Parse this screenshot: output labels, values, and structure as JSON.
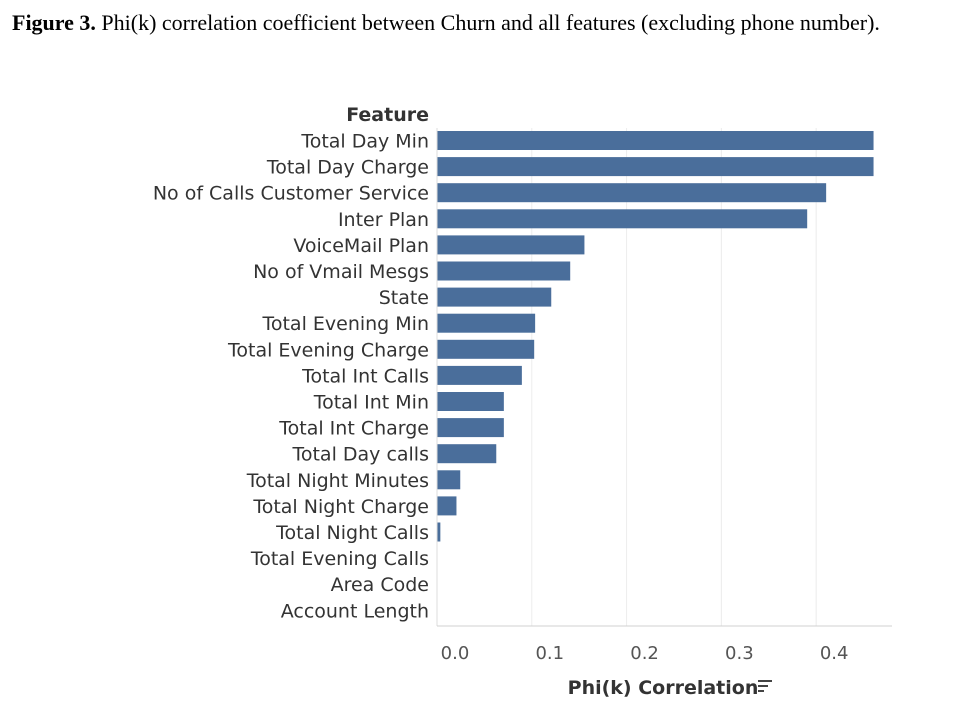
{
  "caption": {
    "lead": "Figure 3.",
    "text": " Phi(k) correlation coefficient between Churn and all features (excluding phone number)."
  },
  "chart_data": {
    "type": "bar",
    "orientation": "horizontal",
    "row_header": "Feature",
    "xlabel": "Phi(k) Correlation",
    "xlim": [
      0,
      0.48
    ],
    "xticks": [
      0.0,
      0.1,
      0.2,
      0.3,
      0.4
    ],
    "xtick_labels": [
      "0.0",
      "0.1",
      "0.2",
      "0.3",
      "0.4"
    ],
    "grid": true,
    "bar_color": "#4A6E9B",
    "sort_icon": "sort-descending-icon",
    "categories": [
      "Total Day Min",
      "Total Day Charge",
      "No of Calls Customer Service",
      "Inter Plan",
      "VoiceMail Plan",
      "No of Vmail Mesgs",
      "State",
      "Total Evening Min",
      "Total Evening Charge",
      "Total Int Calls",
      "Total Int Min",
      "Total Int Charge",
      "Total Day calls",
      "Total Night Minutes",
      "Total Night Charge",
      "Total Night Calls",
      "Total Evening Calls",
      "Area Code",
      "Account Length"
    ],
    "values": [
      0.46,
      0.46,
      0.41,
      0.39,
      0.155,
      0.14,
      0.12,
      0.103,
      0.102,
      0.089,
      0.07,
      0.07,
      0.062,
      0.024,
      0.02,
      0.003,
      0,
      0,
      0
    ]
  }
}
